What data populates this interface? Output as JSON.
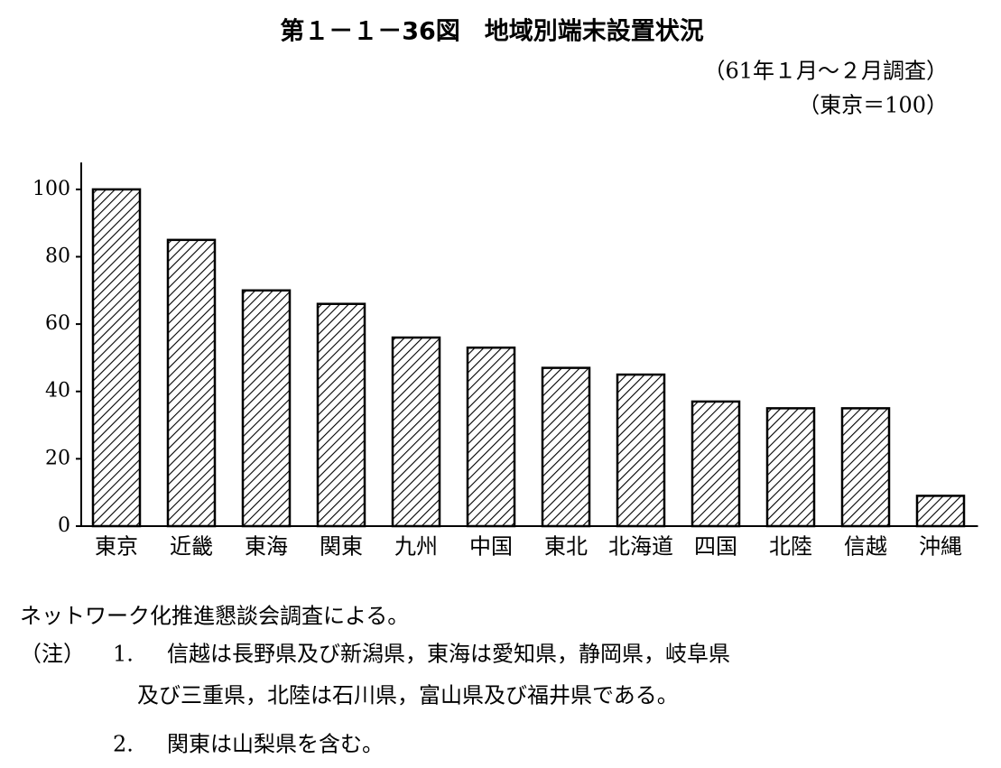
{
  "chart_data": {
    "type": "bar",
    "title": "第１－１－36図　地域別端末設置状況",
    "subtitle": [
      "（61年１月～２月調査）",
      "（東京＝100）"
    ],
    "categories": [
      "東京",
      "近畿",
      "東海",
      "関東",
      "九州",
      "中国",
      "東北",
      "北海道",
      "四国",
      "北陸",
      "信越",
      "沖縄"
    ],
    "values": [
      100,
      85,
      70,
      66,
      56,
      53,
      47,
      45,
      37,
      35,
      35,
      9
    ],
    "color": "#000000",
    "ylim": [
      0,
      108
    ],
    "yticks": [
      0,
      20,
      40,
      60,
      80,
      100
    ],
    "source": "ネットワーク化推進懇談会調査による。",
    "notes_label": "（注）",
    "notes": [
      {
        "number": "1.",
        "lines": [
          "信越は長野県及び新潟県，東海は愛知県，静岡県，岐阜県",
          "及び三重県，北陸は石川県，富山県及び福井県である。"
        ]
      },
      {
        "number": "2.",
        "lines": [
          "関東は山梨県を含む。"
        ]
      }
    ]
  }
}
